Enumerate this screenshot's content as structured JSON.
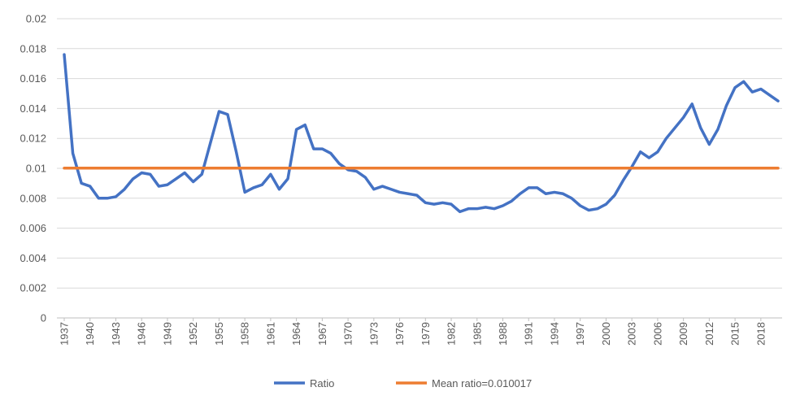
{
  "chart_data": {
    "type": "line",
    "title": "",
    "xlabel": "",
    "ylabel": "",
    "ylim": [
      0,
      0.02
    ],
    "y_ticks": [
      "0",
      "0.002",
      "0.004",
      "0.006",
      "0.008",
      "0.01",
      "0.012",
      "0.014",
      "0.016",
      "0.018",
      "0.02"
    ],
    "x_tick_labels": [
      "1937",
      "1940",
      "1943",
      "1946",
      "1949",
      "1952",
      "1955",
      "1958",
      "1961",
      "1964",
      "1967",
      "1970",
      "1973",
      "1976",
      "1979",
      "1982",
      "1985",
      "1988",
      "1991",
      "1994",
      "1997",
      "2000",
      "2003",
      "2006",
      "2009",
      "2012",
      "2015",
      "2018"
    ],
    "grid": "horizontal",
    "legend_position": "bottom",
    "x": [
      1937,
      1938,
      1939,
      1940,
      1941,
      1942,
      1943,
      1944,
      1945,
      1946,
      1947,
      1948,
      1949,
      1950,
      1951,
      1952,
      1953,
      1954,
      1955,
      1956,
      1957,
      1958,
      1959,
      1960,
      1961,
      1962,
      1963,
      1964,
      1965,
      1966,
      1967,
      1968,
      1969,
      1970,
      1971,
      1972,
      1973,
      1974,
      1975,
      1976,
      1977,
      1978,
      1979,
      1980,
      1981,
      1982,
      1983,
      1984,
      1985,
      1986,
      1987,
      1988,
      1989,
      1990,
      1991,
      1992,
      1993,
      1994,
      1995,
      1996,
      1997,
      1998,
      1999,
      2000,
      2001,
      2002,
      2003,
      2004,
      2005,
      2006,
      2007,
      2008,
      2009,
      2010,
      2011,
      2012,
      2013,
      2014,
      2015,
      2016,
      2017,
      2018,
      2019,
      2020
    ],
    "series": [
      {
        "name": "Ratio",
        "color": "#4472C4",
        "values": [
          0.0176,
          0.011,
          0.009,
          0.0088,
          0.008,
          0.008,
          0.0081,
          0.0086,
          0.0093,
          0.0097,
          0.0096,
          0.0088,
          0.0089,
          0.0093,
          0.0097,
          0.0091,
          0.0096,
          0.0117,
          0.0138,
          0.0136,
          0.0111,
          0.0084,
          0.0087,
          0.0089,
          0.0096,
          0.0086,
          0.0093,
          0.0126,
          0.0129,
          0.0113,
          0.0113,
          0.011,
          0.0103,
          0.0099,
          0.0098,
          0.0094,
          0.0086,
          0.0088,
          0.0086,
          0.0084,
          0.0083,
          0.0082,
          0.0077,
          0.0076,
          0.0077,
          0.0076,
          0.0071,
          0.0073,
          0.0073,
          0.0074,
          0.0073,
          0.0075,
          0.0078,
          0.0083,
          0.0087,
          0.0087,
          0.0083,
          0.0084,
          0.0083,
          0.008,
          0.0075,
          0.0072,
          0.0073,
          0.0076,
          0.0082,
          0.0092,
          0.0101,
          0.0111,
          0.0107,
          0.0111,
          0.012,
          0.0127,
          0.0134,
          0.0143,
          0.0127,
          0.0116,
          0.0126,
          0.0142,
          0.0154,
          0.0158,
          0.0151,
          0.0153,
          0.0149,
          0.0145
        ]
      },
      {
        "name": "Mean ratio=0.010017",
        "color": "#ED7D31",
        "values": [
          0.010017,
          0.010017,
          0.010017,
          0.010017,
          0.010017,
          0.010017,
          0.010017,
          0.010017,
          0.010017,
          0.010017,
          0.010017,
          0.010017,
          0.010017,
          0.010017,
          0.010017,
          0.010017,
          0.010017,
          0.010017,
          0.010017,
          0.010017,
          0.010017,
          0.010017,
          0.010017,
          0.010017,
          0.010017,
          0.010017,
          0.010017,
          0.010017,
          0.010017,
          0.010017,
          0.010017,
          0.010017,
          0.010017,
          0.010017,
          0.010017,
          0.010017,
          0.010017,
          0.010017,
          0.010017,
          0.010017,
          0.010017,
          0.010017,
          0.010017,
          0.010017,
          0.010017,
          0.010017,
          0.010017,
          0.010017,
          0.010017,
          0.010017,
          0.010017,
          0.010017,
          0.010017,
          0.010017,
          0.010017,
          0.010017,
          0.010017,
          0.010017,
          0.010017,
          0.010017,
          0.010017,
          0.010017,
          0.010017,
          0.010017,
          0.010017,
          0.010017,
          0.010017,
          0.010017,
          0.010017,
          0.010017,
          0.010017,
          0.010017,
          0.010017,
          0.010017,
          0.010017,
          0.010017,
          0.010017,
          0.010017,
          0.010017,
          0.010017,
          0.010017,
          0.010017,
          0.010017,
          0.010017
        ]
      }
    ]
  },
  "colors": {
    "gridline": "#D9D9D9",
    "axis": "#BFBFBF",
    "text": "#595959"
  }
}
